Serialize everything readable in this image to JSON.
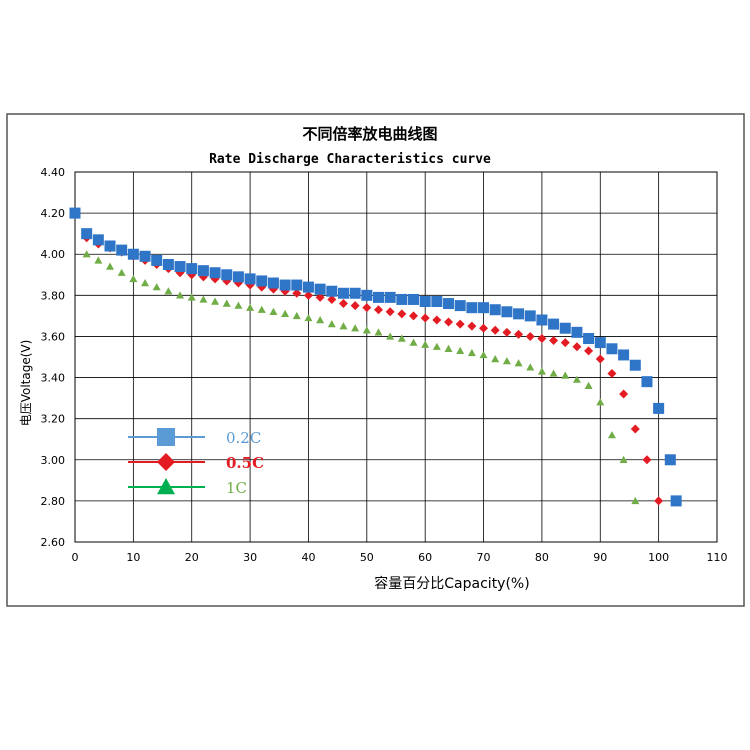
{
  "chart_data": {
    "type": "scatter",
    "title": "不同倍率放电曲线图",
    "subtitle": "Rate Discharge Characteristics curve",
    "xlabel": "容量百分比Capacity(%)",
    "ylabel": "电压Voltage(V)",
    "xlim": [
      0,
      110
    ],
    "ylim": [
      2.6,
      4.4
    ],
    "xticks": [
      0,
      10,
      20,
      30,
      40,
      50,
      60,
      70,
      80,
      90,
      100,
      110
    ],
    "yticks": [
      2.6,
      2.8,
      3.0,
      3.2,
      3.4,
      3.6,
      3.8,
      4.0,
      4.2,
      4.4
    ],
    "xtick_labels": [
      "0",
      "10",
      "20",
      "30",
      "40",
      "50",
      "60",
      "70",
      "80",
      "90",
      "100",
      "110"
    ],
    "ytick_labels": [
      "2.60",
      "2.80",
      "3.00",
      "3.20",
      "3.40",
      "3.60",
      "3.80",
      "4.00",
      "4.20",
      "4.40"
    ],
    "grid": true,
    "legend_position": "lower-left",
    "series": [
      {
        "name": "0.2C",
        "color": "#2e75c8",
        "legend_color": "#5b9bd5",
        "marker": "square",
        "points": [
          [
            0,
            4.2
          ],
          [
            2,
            4.1
          ],
          [
            4,
            4.07
          ],
          [
            6,
            4.04
          ],
          [
            8,
            4.02
          ],
          [
            10,
            4.0
          ],
          [
            12,
            3.99
          ],
          [
            14,
            3.97
          ],
          [
            16,
            3.95
          ],
          [
            18,
            3.94
          ],
          [
            20,
            3.93
          ],
          [
            22,
            3.92
          ],
          [
            24,
            3.91
          ],
          [
            26,
            3.9
          ],
          [
            28,
            3.89
          ],
          [
            30,
            3.88
          ],
          [
            32,
            3.87
          ],
          [
            34,
            3.86
          ],
          [
            36,
            3.85
          ],
          [
            38,
            3.85
          ],
          [
            40,
            3.84
          ],
          [
            42,
            3.83
          ],
          [
            44,
            3.82
          ],
          [
            46,
            3.81
          ],
          [
            48,
            3.81
          ],
          [
            50,
            3.8
          ],
          [
            52,
            3.79
          ],
          [
            54,
            3.79
          ],
          [
            56,
            3.78
          ],
          [
            58,
            3.78
          ],
          [
            60,
            3.77
          ],
          [
            62,
            3.77
          ],
          [
            64,
            3.76
          ],
          [
            66,
            3.75
          ],
          [
            68,
            3.74
          ],
          [
            70,
            3.74
          ],
          [
            72,
            3.73
          ],
          [
            74,
            3.72
          ],
          [
            76,
            3.71
          ],
          [
            78,
            3.7
          ],
          [
            80,
            3.68
          ],
          [
            82,
            3.66
          ],
          [
            84,
            3.64
          ],
          [
            86,
            3.62
          ],
          [
            88,
            3.59
          ],
          [
            90,
            3.57
          ],
          [
            92,
            3.54
          ],
          [
            94,
            3.51
          ],
          [
            96,
            3.46
          ],
          [
            98,
            3.38
          ],
          [
            100,
            3.25
          ],
          [
            102,
            3.0
          ],
          [
            103,
            2.8
          ]
        ]
      },
      {
        "name": "0.5C",
        "color": "#e31b23",
        "legend_color": "#e31b23",
        "marker": "diamond",
        "points": [
          [
            0,
            4.2
          ],
          [
            2,
            4.08
          ],
          [
            4,
            4.05
          ],
          [
            6,
            4.03
          ],
          [
            8,
            4.01
          ],
          [
            10,
            3.99
          ],
          [
            12,
            3.97
          ],
          [
            14,
            3.95
          ],
          [
            16,
            3.93
          ],
          [
            18,
            3.91
          ],
          [
            20,
            3.9
          ],
          [
            22,
            3.89
          ],
          [
            24,
            3.88
          ],
          [
            26,
            3.87
          ],
          [
            28,
            3.86
          ],
          [
            30,
            3.85
          ],
          [
            32,
            3.84
          ],
          [
            34,
            3.83
          ],
          [
            36,
            3.82
          ],
          [
            38,
            3.81
          ],
          [
            40,
            3.8
          ],
          [
            42,
            3.79
          ],
          [
            44,
            3.78
          ],
          [
            46,
            3.76
          ],
          [
            48,
            3.75
          ],
          [
            50,
            3.74
          ],
          [
            52,
            3.73
          ],
          [
            54,
            3.72
          ],
          [
            56,
            3.71
          ],
          [
            58,
            3.7
          ],
          [
            60,
            3.69
          ],
          [
            62,
            3.68
          ],
          [
            64,
            3.67
          ],
          [
            66,
            3.66
          ],
          [
            68,
            3.65
          ],
          [
            70,
            3.64
          ],
          [
            72,
            3.63
          ],
          [
            74,
            3.62
          ],
          [
            76,
            3.61
          ],
          [
            78,
            3.6
          ],
          [
            80,
            3.59
          ],
          [
            82,
            3.58
          ],
          [
            84,
            3.57
          ],
          [
            86,
            3.55
          ],
          [
            88,
            3.53
          ],
          [
            90,
            3.49
          ],
          [
            92,
            3.42
          ],
          [
            94,
            3.32
          ],
          [
            96,
            3.15
          ],
          [
            98,
            3.0
          ],
          [
            100,
            2.8
          ]
        ]
      },
      {
        "name": "1C",
        "color": "#70ad47",
        "legend_color": "#00b050",
        "marker": "triangle",
        "points": [
          [
            0,
            4.2
          ],
          [
            2,
            4.0
          ],
          [
            4,
            3.97
          ],
          [
            6,
            3.94
          ],
          [
            8,
            3.91
          ],
          [
            10,
            3.88
          ],
          [
            12,
            3.86
          ],
          [
            14,
            3.84
          ],
          [
            16,
            3.82
          ],
          [
            18,
            3.8
          ],
          [
            20,
            3.79
          ],
          [
            22,
            3.78
          ],
          [
            24,
            3.77
          ],
          [
            26,
            3.76
          ],
          [
            28,
            3.75
          ],
          [
            30,
            3.74
          ],
          [
            32,
            3.73
          ],
          [
            34,
            3.72
          ],
          [
            36,
            3.71
          ],
          [
            38,
            3.7
          ],
          [
            40,
            3.69
          ],
          [
            42,
            3.68
          ],
          [
            44,
            3.66
          ],
          [
            46,
            3.65
          ],
          [
            48,
            3.64
          ],
          [
            50,
            3.63
          ],
          [
            52,
            3.62
          ],
          [
            54,
            3.6
          ],
          [
            56,
            3.59
          ],
          [
            58,
            3.57
          ],
          [
            60,
            3.56
          ],
          [
            62,
            3.55
          ],
          [
            64,
            3.54
          ],
          [
            66,
            3.53
          ],
          [
            68,
            3.52
          ],
          [
            70,
            3.51
          ],
          [
            72,
            3.49
          ],
          [
            74,
            3.48
          ],
          [
            76,
            3.47
          ],
          [
            78,
            3.45
          ],
          [
            80,
            3.43
          ],
          [
            82,
            3.42
          ],
          [
            84,
            3.41
          ],
          [
            86,
            3.39
          ],
          [
            88,
            3.36
          ],
          [
            90,
            3.28
          ],
          [
            92,
            3.12
          ],
          [
            94,
            3.0
          ],
          [
            96,
            2.8
          ]
        ]
      }
    ]
  }
}
